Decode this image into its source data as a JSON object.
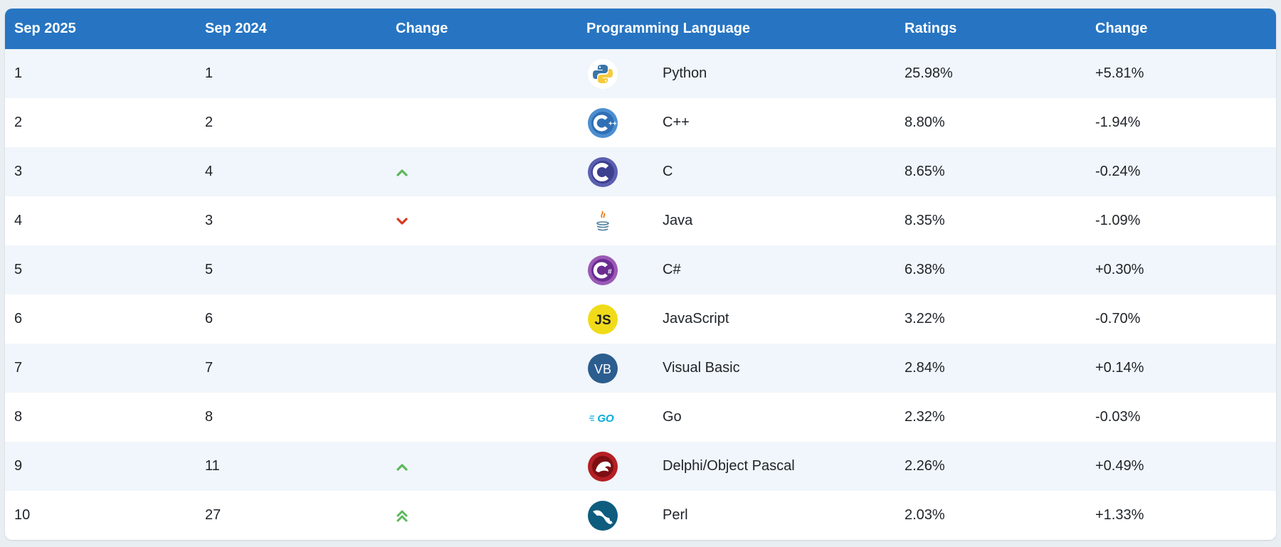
{
  "header": {
    "col_current": "Sep 2025",
    "col_previous": "Sep 2024",
    "col_change_rank": "Change",
    "col_language": "Programming Language",
    "col_ratings": "Ratings",
    "col_change_rating": "Change"
  },
  "colors": {
    "header_bg": "#2775c2",
    "up": "#5cb85c",
    "down": "#d9381e"
  },
  "rows": [
    {
      "current": "1",
      "previous": "1",
      "trend": "none",
      "logo": "python-logo-icon",
      "language": "Python",
      "rating": "25.98%",
      "change": "+5.81%"
    },
    {
      "current": "2",
      "previous": "2",
      "trend": "none",
      "logo": "cpp-logo-icon",
      "language": "C++",
      "rating": "8.80%",
      "change": "-1.94%"
    },
    {
      "current": "3",
      "previous": "4",
      "trend": "up",
      "logo": "c-logo-icon",
      "language": "C",
      "rating": "8.65%",
      "change": "-0.24%"
    },
    {
      "current": "4",
      "previous": "3",
      "trend": "down",
      "logo": "java-logo-icon",
      "language": "Java",
      "rating": "8.35%",
      "change": "-1.09%"
    },
    {
      "current": "5",
      "previous": "5",
      "trend": "none",
      "logo": "csharp-logo-icon",
      "language": "C#",
      "rating": "6.38%",
      "change": "+0.30%"
    },
    {
      "current": "6",
      "previous": "6",
      "trend": "none",
      "logo": "javascript-logo-icon",
      "language": "JavaScript",
      "rating": "3.22%",
      "change": "-0.70%"
    },
    {
      "current": "7",
      "previous": "7",
      "trend": "none",
      "logo": "visual-basic-logo-icon",
      "language": "Visual Basic",
      "rating": "2.84%",
      "change": "+0.14%"
    },
    {
      "current": "8",
      "previous": "8",
      "trend": "none",
      "logo": "go-logo-icon",
      "language": "Go",
      "rating": "2.32%",
      "change": "-0.03%"
    },
    {
      "current": "9",
      "previous": "11",
      "trend": "up",
      "logo": "delphi-logo-icon",
      "language": "Delphi/Object Pascal",
      "rating": "2.26%",
      "change": "+0.49%"
    },
    {
      "current": "10",
      "previous": "27",
      "trend": "double-up",
      "logo": "perl-logo-icon",
      "language": "Perl",
      "rating": "2.03%",
      "change": "+1.33%"
    }
  ],
  "logo_text": {
    "js": "JS",
    "vb": "VB",
    "go": "GO"
  }
}
